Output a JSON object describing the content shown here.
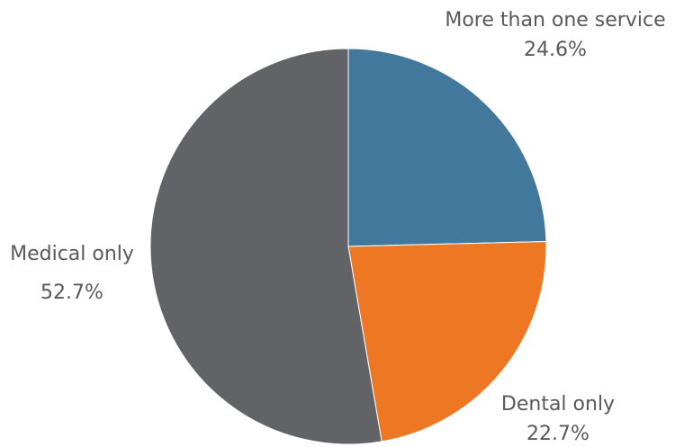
{
  "chart_data": {
    "type": "pie",
    "title": "",
    "slices": [
      {
        "label": "More than one service",
        "value": 24.6,
        "value_label": "24.6%",
        "color": "#41789B"
      },
      {
        "label": "Dental only",
        "value": 22.7,
        "value_label": "22.7%",
        "color": "#ED7722"
      },
      {
        "label": "Medical only",
        "value": 52.7,
        "value_label": "52.7%",
        "color": "#626366"
      }
    ],
    "start_angle": "12 o'clock, clockwise",
    "legend": "none"
  }
}
